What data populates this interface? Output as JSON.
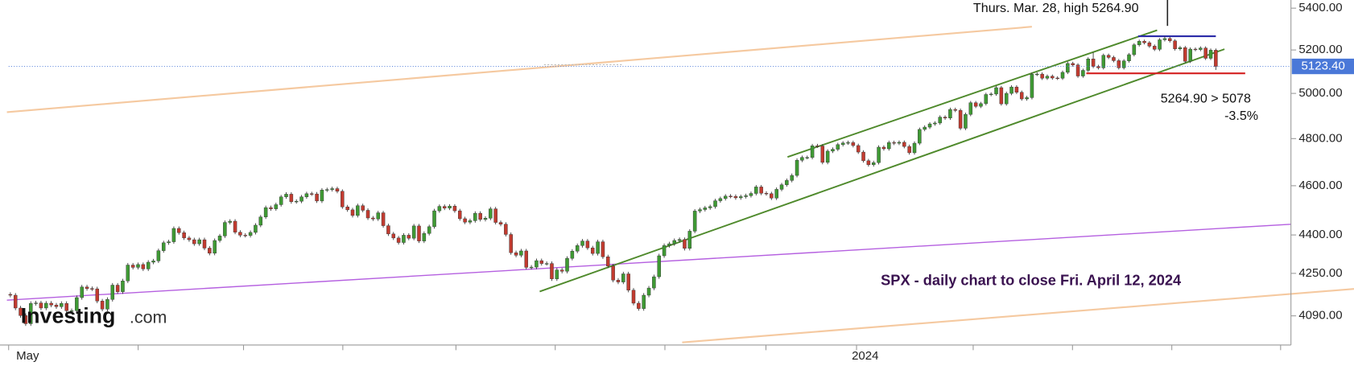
{
  "chart_data": {
    "type": "candlestick",
    "log": true,
    "title": "SPX - daily chart to close Fri. April 12, 2024",
    "annotations": [
      "Thurs. Mar. 28, high 5264.90",
      "5264.90 > 5078",
      "-3.5%"
    ],
    "watermark": [
      "Investing",
      ".com"
    ],
    "up_color": "#3f9a34",
    "down_color": "#c23b30",
    "ylim": [
      3990,
      5440
    ],
    "yticks": [
      {
        "value": 5400,
        "label": "5400.00"
      },
      {
        "value": 5200,
        "label": "5200.00"
      },
      {
        "value": 5000,
        "label": "5000.00"
      },
      {
        "value": 4800,
        "label": "4800.00"
      },
      {
        "value": 4600,
        "label": "4600.00"
      },
      {
        "value": 4400,
        "label": "4400.00"
      },
      {
        "value": 4250,
        "label": "4250.00"
      },
      {
        "value": 4090,
        "label": "4090.00"
      }
    ],
    "last_price": {
      "value": 5123.4,
      "label": "5123.40",
      "color": "#4a78d8"
    },
    "categories": [
      "May",
      null,
      null,
      null,
      null,
      null,
      null,
      null,
      null,
      null,
      null,
      null,
      null,
      null,
      null,
      null,
      null,
      null,
      null,
      null,
      null,
      null,
      null,
      null,
      null,
      null,
      null,
      null,
      null,
      null,
      null,
      null,
      null,
      null,
      null,
      null,
      null,
      null,
      null,
      null,
      null,
      null,
      null,
      null,
      null,
      null,
      null,
      null,
      null,
      null,
      null,
      null,
      null,
      null,
      null,
      null,
      null,
      null,
      null,
      null,
      null,
      null,
      null,
      null,
      null,
      null,
      null,
      null,
      null,
      null,
      null,
      null,
      null,
      null,
      null,
      null,
      null,
      null,
      null,
      null,
      null,
      null,
      null,
      null,
      null,
      null,
      null,
      null,
      null,
      null,
      null,
      null,
      null,
      null,
      null,
      null,
      null,
      null,
      null,
      null,
      null,
      null,
      null,
      null,
      null,
      null,
      null,
      null,
      null,
      null,
      null,
      null,
      null,
      null,
      null,
      null,
      null,
      null,
      null,
      null,
      null,
      null,
      null,
      null,
      null,
      null,
      null,
      null,
      null,
      null,
      null,
      null,
      null,
      null,
      null,
      null,
      null,
      null,
      null,
      null,
      null,
      null,
      null,
      null,
      null,
      null,
      null,
      null,
      null,
      null,
      null,
      null,
      null,
      null,
      null,
      null,
      null,
      null,
      null,
      null,
      null,
      null,
      null,
      null,
      null,
      null,
      "2024",
      null,
      null,
      null,
      null,
      null,
      null,
      null,
      null,
      null,
      null,
      null,
      null,
      null,
      null,
      null,
      null,
      null,
      null,
      null,
      null,
      null,
      null,
      null,
      null,
      null,
      null,
      null,
      null,
      null,
      null,
      null,
      null,
      null,
      null,
      null,
      null,
      null,
      null,
      null,
      null,
      null,
      null,
      null,
      null,
      null,
      null,
      null,
      null,
      null,
      null,
      null,
      null,
      null,
      null,
      null,
      null,
      null,
      null,
      null,
      null,
      null,
      null,
      null,
      null,
      null,
      null,
      null,
      null,
      null,
      null
    ],
    "open": [
      4170,
      4167,
      4119,
      4091,
      4061,
      4136,
      4138,
      4119,
      4137,
      4130,
      4124,
      4136,
      4109,
      4109,
      4158,
      4198,
      4192,
      4191,
      4145,
      4115,
      4151,
      4205,
      4180,
      4221,
      4282,
      4273,
      4284,
      4267,
      4293,
      4298,
      4338,
      4369,
      4373,
      4426,
      4409,
      4388,
      4381,
      4365,
      4381,
      4348,
      4328,
      4378,
      4396,
      4450,
      4455,
      4411,
      4399,
      4398,
      4410,
      4439,
      4472,
      4510,
      4505,
      4522,
      4554,
      4565,
      4534,
      4536,
      4554,
      4567,
      4566,
      4537,
      4582,
      4584,
      4588,
      4577,
      4513,
      4501,
      4478,
      4518,
      4499,
      4468,
      4464,
      4489,
      4437,
      4404,
      4388,
      4370,
      4399,
      4387,
      4436,
      4376,
      4406,
      4433,
      4497,
      4515,
      4508,
      4516,
      4497,
      4465,
      4451,
      4457,
      4487,
      4462,
      4467,
      4505,
      4450,
      4443,
      4402,
      4330,
      4320,
      4337,
      4273,
      4274,
      4299,
      4288,
      4288,
      4229,
      4263,
      4258,
      4308,
      4336,
      4358,
      4376,
      4349,
      4327,
      4373,
      4314,
      4278,
      4224,
      4217,
      4248,
      4186,
      4137,
      4117,
      4167,
      4194,
      4237,
      4318,
      4358,
      4365,
      4378,
      4382,
      4347,
      4415,
      4496,
      4502,
      4509,
      4514,
      4538,
      4547,
      4557,
      4556,
      4550,
      4555,
      4559,
      4568,
      4595,
      4569,
      4567,
      4549,
      4585,
      4604,
      4622,
      4643,
      4707,
      4719,
      4719,
      4769,
      4768,
      4698,
      4746,
      4754,
      4774,
      4781,
      4783,
      4770,
      4742,
      4705,
      4688,
      4697,
      4763,
      4756,
      4783,
      4780,
      4784,
      4766,
      4739,
      4780,
      4840,
      4850,
      4864,
      4868,
      4894,
      4890,
      4928,
      4924,
      4845,
      4906,
      4958,
      4942,
      4954,
      4995,
      4997,
      5026,
      4953,
      5000,
      5029,
      5005,
      4975,
      4981,
      5087,
      5088,
      5069,
      5078,
      5070,
      5069,
      5096,
      5137,
      5130,
      5079,
      5105,
      5158,
      5123,
      5117,
      5175,
      5165,
      5150,
      5117,
      5149,
      5178,
      5224,
      5241,
      5234,
      5218,
      5203,
      5248,
      5254,
      5243,
      5205,
      5211,
      5147,
      5204,
      5202,
      5209,
      5161,
      5199
    ],
    "high": [
      4178,
      4175,
      4127,
      4099,
      4144,
      4146,
      4146,
      4145,
      4145,
      4138,
      4144,
      4144,
      4117,
      4166,
      4206,
      4206,
      4200,
      4199,
      4153,
      4159,
      4213,
      4213,
      4229,
      4290,
      4290,
      4292,
      4292,
      4301,
      4306,
      4346,
      4377,
      4381,
      4434,
      4434,
      4417,
      4396,
      4389,
      4389,
      4389,
      4356,
      4386,
      4404,
      4458,
      4463,
      4463,
      4419,
      4407,
      4418,
      4447,
      4480,
      4518,
      4518,
      4530,
      4562,
      4573,
      4573,
      4544,
      4562,
      4575,
      4575,
      4574,
      4590,
      4592,
      4596,
      4596,
      4585,
      4521,
      4509,
      4526,
      4526,
      4507,
      4476,
      4497,
      4497,
      4445,
      4412,
      4396,
      4407,
      4407,
      4444,
      4444,
      4414,
      4441,
      4505,
      4523,
      4523,
      4524,
      4524,
      4505,
      4473,
      4465,
      4495,
      4495,
      4475,
      4513,
      4513,
      4458,
      4451,
      4410,
      4338,
      4345,
      4345,
      4282,
      4307,
      4307,
      4296,
      4296,
      4271,
      4271,
      4316,
      4344,
      4366,
      4384,
      4384,
      4357,
      4381,
      4381,
      4322,
      4286,
      4232,
      4256,
      4256,
      4194,
      4145,
      4175,
      4202,
      4245,
      4326,
      4366,
      4373,
      4386,
      4390,
      4390,
      4423,
      4504,
      4510,
      4517,
      4522,
      4546,
      4555,
      4565,
      4565,
      4564,
      4563,
      4567,
      4576,
      4603,
      4603,
      4577,
      4575,
      4593,
      4612,
      4630,
      4651,
      4715,
      4727,
      4727,
      4777,
      4777,
      4776,
      4754,
      4762,
      4782,
      4789,
      4791,
      4791,
      4778,
      4750,
      4713,
      4705,
      4771,
      4771,
      4791,
      4791,
      4792,
      4792,
      4774,
      4788,
      4848,
      4858,
      4872,
      4876,
      4902,
      4902,
      4936,
      4936,
      4932,
      4914,
      4966,
      4966,
      4962,
      5003,
      5005,
      5034,
      5034,
      5008,
      5037,
      5037,
      5013,
      4989,
      5095,
      5096,
      5096,
      5086,
      5086,
      5078,
      5104,
      5145,
      5145,
      5138,
      5113,
      5166,
      5189,
      5131,
      5183,
      5183,
      5173,
      5158,
      5157,
      5186,
      5232,
      5249,
      5249,
      5242,
      5226,
      5256,
      5264.9,
      5262,
      5251,
      5219,
      5219,
      5212,
      5212,
      5217,
      5217,
      5207,
      5207
    ],
    "low": [
      4159,
      4111,
      4083,
      4053,
      4053,
      4128,
      4111,
      4111,
      4122,
      4116,
      4116,
      4101,
      4101,
      4101,
      4150,
      4184,
      4183,
      4137,
      4107,
      4107,
      4143,
      4172,
      4172,
      4213,
      4265,
      4265,
      4259,
      4259,
      4285,
      4290,
      4330,
      4361,
      4365,
      4401,
      4380,
      4373,
      4357,
      4357,
      4340,
      4320,
      4320,
      4370,
      4388,
      4442,
      4403,
      4391,
      4390,
      4390,
      4402,
      4431,
      4464,
      4497,
      4497,
      4514,
      4546,
      4526,
      4526,
      4528,
      4546,
      4558,
      4529,
      4529,
      4574,
      4576,
      4569,
      4505,
      4493,
      4470,
      4470,
      4491,
      4460,
      4456,
      4456,
      4429,
      4396,
      4380,
      4362,
      4362,
      4379,
      4379,
      4368,
      4368,
      4398,
      4425,
      4489,
      4500,
      4500,
      4489,
      4457,
      4443,
      4443,
      4449,
      4454,
      4454,
      4459,
      4442,
      4435,
      4394,
      4322,
      4312,
      4312,
      4265,
      4265,
      4266,
      4280,
      4280,
      4221,
      4221,
      4250,
      4250,
      4300,
      4328,
      4350,
      4341,
      4319,
      4319,
      4306,
      4270,
      4216,
      4209,
      4209,
      4178,
      4129,
      4109,
      4109,
      4159,
      4186,
      4229,
      4310,
      4350,
      4357,
      4370,
      4339,
      4339,
      4407,
      4488,
      4494,
      4501,
      4506,
      4530,
      4539,
      4548,
      4542,
      4542,
      4547,
      4551,
      4560,
      4561,
      4559,
      4541,
      4541,
      4577,
      4596,
      4614,
      4635,
      4699,
      4711,
      4711,
      4760,
      4690,
      4690,
      4738,
      4746,
      4766,
      4773,
      4762,
      4734,
      4697,
      4680,
      4680,
      4689,
      4748,
      4748,
      4772,
      4772,
      4758,
      4731,
      4731,
      4772,
      4832,
      4842,
      4856,
      4860,
      4882,
      4882,
      4916,
      4837,
      4837,
      4898,
      4934,
      4934,
      4946,
      4987,
      4989,
      4945,
      4945,
      4992,
      4997,
      4967,
      4967,
      4973,
      5079,
      5061,
      5061,
      5062,
      5061,
      5061,
      5088,
      5122,
      5071,
      5071,
      5097,
      5115,
      5109,
      5109,
      5157,
      5142,
      5109,
      5109,
      5141,
      5170,
      5216,
      5226,
      5210,
      5195,
      5195,
      5240,
      5235,
      5197,
      5197,
      5139,
      5139,
      5194,
      5194,
      5153,
      5153,
      5107
    ],
    "close": [
      4167,
      4119,
      4091,
      4061,
      4136,
      4138,
      4119,
      4137,
      4130,
      4124,
      4136,
      4109,
      4109,
      4158,
      4198,
      4192,
      4191,
      4145,
      4115,
      4151,
      4205,
      4180,
      4221,
      4282,
      4273,
      4284,
      4267,
      4293,
      4298,
      4338,
      4369,
      4373,
      4426,
      4409,
      4388,
      4381,
      4365,
      4381,
      4348,
      4328,
      4378,
      4396,
      4450,
      4455,
      4411,
      4399,
      4398,
      4410,
      4439,
      4472,
      4510,
      4505,
      4522,
      4554,
      4565,
      4534,
      4536,
      4554,
      4567,
      4566,
      4537,
      4582,
      4584,
      4588,
      4577,
      4513,
      4501,
      4478,
      4518,
      4499,
      4468,
      4464,
      4489,
      4437,
      4404,
      4388,
      4370,
      4399,
      4387,
      4436,
      4376,
      4406,
      4433,
      4497,
      4515,
      4508,
      4516,
      4497,
      4465,
      4451,
      4457,
      4487,
      4462,
      4467,
      4505,
      4450,
      4443,
      4402,
      4330,
      4320,
      4337,
      4273,
      4274,
      4299,
      4288,
      4288,
      4229,
      4263,
      4258,
      4308,
      4336,
      4358,
      4376,
      4349,
      4327,
      4373,
      4314,
      4278,
      4224,
      4217,
      4248,
      4186,
      4137,
      4117,
      4167,
      4194,
      4237,
      4318,
      4358,
      4365,
      4378,
      4382,
      4347,
      4415,
      4496,
      4502,
      4509,
      4514,
      4538,
      4547,
      4557,
      4556,
      4550,
      4555,
      4559,
      4568,
      4595,
      4569,
      4567,
      4549,
      4585,
      4604,
      4622,
      4643,
      4707,
      4719,
      4719,
      4769,
      4768,
      4698,
      4746,
      4754,
      4774,
      4781,
      4783,
      4770,
      4742,
      4705,
      4688,
      4697,
      4763,
      4756,
      4783,
      4780,
      4784,
      4766,
      4739,
      4780,
      4840,
      4850,
      4864,
      4868,
      4894,
      4890,
      4928,
      4924,
      4845,
      4906,
      4958,
      4942,
      4954,
      4995,
      4997,
      5026,
      4953,
      5000,
      5029,
      5005,
      4975,
      4981,
      5087,
      5088,
      5069,
      5078,
      5070,
      5069,
      5096,
      5137,
      5130,
      5079,
      5105,
      5158,
      5123,
      5117,
      5175,
      5165,
      5150,
      5117,
      5149,
      5178,
      5224,
      5241,
      5234,
      5218,
      5203,
      5248,
      5254,
      5243,
      5205,
      5211,
      5147,
      5204,
      5202,
      5209,
      5161,
      5199,
      5123
    ]
  }
}
